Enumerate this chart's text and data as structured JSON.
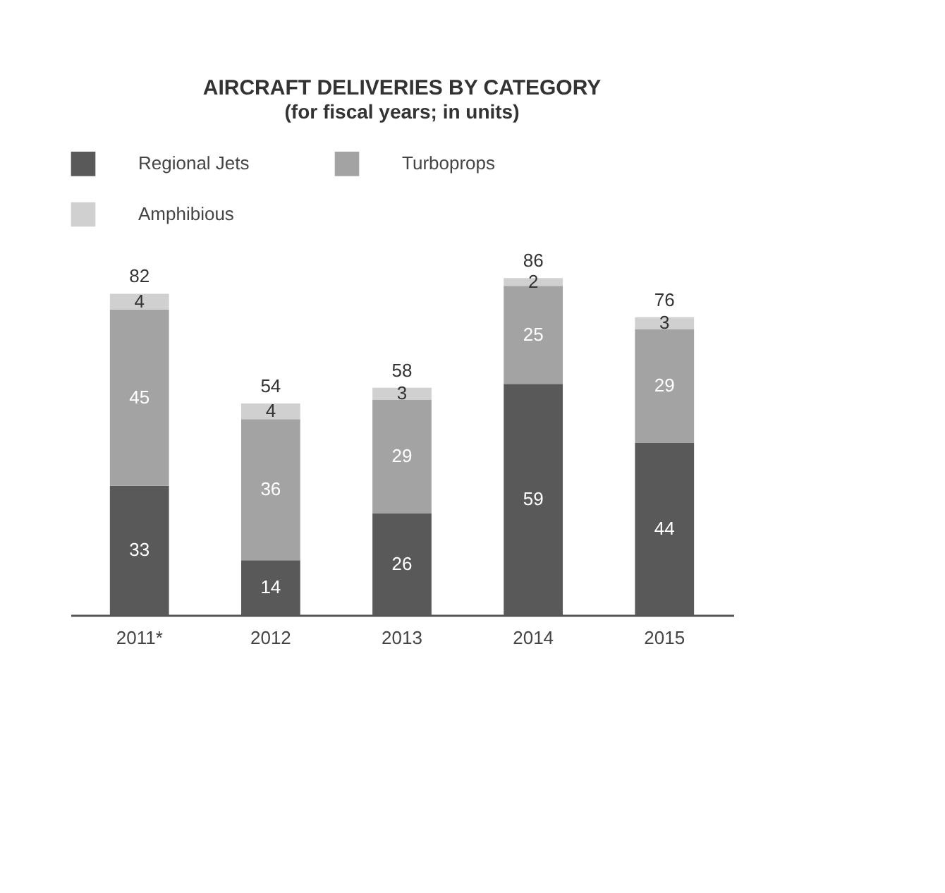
{
  "chart_data": {
    "type": "bar",
    "title": "AIRCRAFT DELIVERIES BY CATEGORY",
    "subtitle": "(for fiscal years; in units)",
    "categories": [
      "2011*",
      "2012",
      "2013",
      "2014",
      "2015"
    ],
    "stacked": true,
    "data_labels": true,
    "legend": "top",
    "grid": false,
    "totals": [
      "82",
      "54",
      "58",
      "86",
      "76"
    ],
    "series": [
      {
        "name": "Regional Jets",
        "color": "#595959",
        "values": [
          33,
          14,
          26,
          59,
          44
        ]
      },
      {
        "name": "Turboprops",
        "color": "#a3a3a3",
        "values": [
          45,
          36,
          29,
          25,
          29
        ]
      },
      {
        "name": "Amphibious",
        "color": "#d0d0d0",
        "values": [
          4,
          4,
          3,
          2,
          3
        ]
      }
    ]
  }
}
